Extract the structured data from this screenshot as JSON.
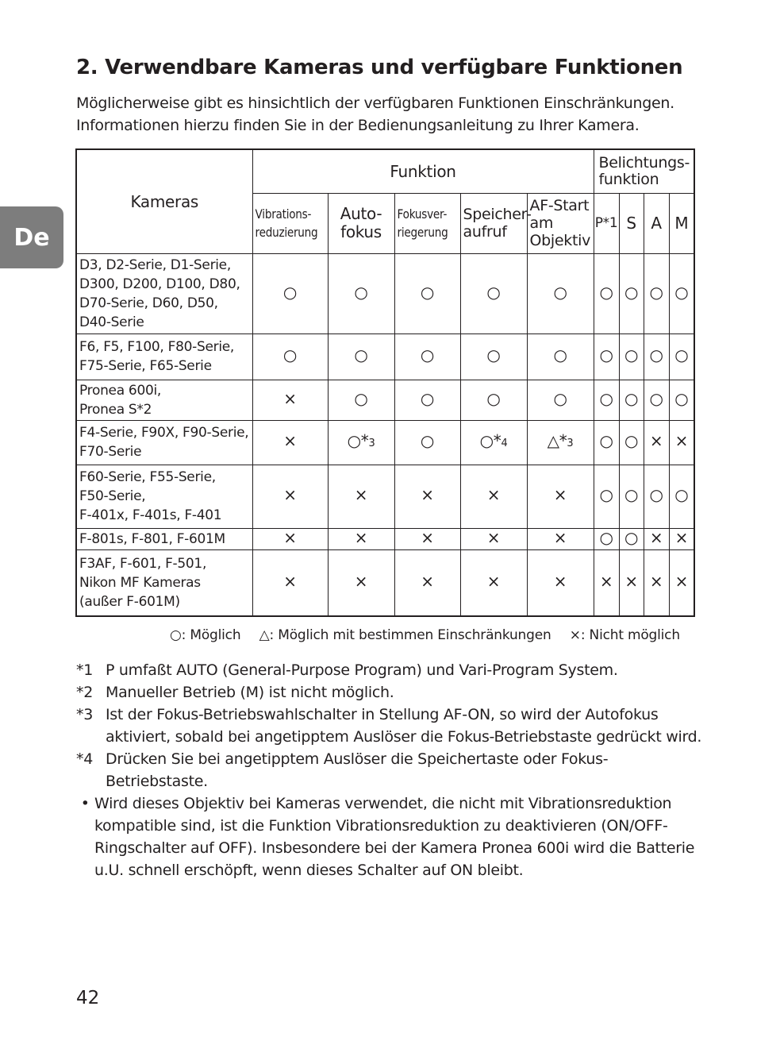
{
  "side_tab": "De",
  "title": "2. Verwendbare Kameras und verfügbare Funktionen",
  "intro": [
    "Möglicherweise gibt es hinsichtlich der verfügbaren Funktionen Einschränkungen.",
    "Informationen hierzu finden Sie in der Bedienungsanleitung zu Ihrer Kamera."
  ],
  "table": {
    "cameras_header": "Kameras",
    "funktion_header": "Funktion",
    "belichtung_header": [
      "Belichtungs-",
      "funktion"
    ],
    "sub_headers": [
      [
        "Vibrations-",
        "reduzierung"
      ],
      [
        "Auto-",
        "fokus"
      ],
      [
        "Fokusver-",
        "riegerung"
      ],
      [
        "Speicher-",
        "aufruf"
      ],
      [
        "AF-Start",
        "am",
        "Objektiv"
      ],
      [
        "P*1"
      ],
      [
        "S"
      ],
      [
        "A"
      ],
      [
        "M"
      ]
    ],
    "rows": [
      {
        "camera": [
          "D3, D2-Serie, D1-Serie,",
          "D300, D200, D100, D80,",
          "D70-Serie, D60, D50,",
          "D40-Serie"
        ],
        "cells": [
          "○",
          "○",
          "○",
          "○",
          "○",
          "○",
          "○",
          "○",
          "○"
        ]
      },
      {
        "camera": [
          "F6, F5, F100, F80-Serie,",
          "F75-Serie, F65-Serie"
        ],
        "cells": [
          "○",
          "○",
          "○",
          "○",
          "○",
          "○",
          "○",
          "○",
          "○"
        ]
      },
      {
        "camera": [
          "Pronea 600i,",
          "Pronea S*2"
        ],
        "cells": [
          "×",
          "○",
          "○",
          "○",
          "○",
          "○",
          "○",
          "○",
          "○"
        ]
      },
      {
        "camera": [
          "F4-Serie, F90X, F90-Serie,",
          "F70-Serie"
        ],
        "cells": [
          "×",
          "○*3",
          "○",
          "○*4",
          "△*3",
          "○",
          "○",
          "×",
          "×"
        ]
      },
      {
        "camera": [
          "F60-Serie, F55-Serie,",
          "F50-Serie,",
          "F-401x, F-401s, F-401"
        ],
        "cells": [
          "×",
          "×",
          "×",
          "×",
          "×",
          "○",
          "○",
          "○",
          "○"
        ]
      },
      {
        "camera": [
          "F-801s, F-801, F-601M"
        ],
        "cells": [
          "×",
          "×",
          "×",
          "×",
          "×",
          "○",
          "○",
          "×",
          "×"
        ]
      },
      {
        "camera": [
          "F3AF, F-601, F-501,",
          "Nikon MF Kameras",
          "(außer F-601M)"
        ],
        "cells": [
          "×",
          "×",
          "×",
          "×",
          "×",
          "×",
          "×",
          "×",
          "×"
        ]
      }
    ]
  },
  "legend": [
    "○: Möglich",
    "△: Möglich mit bestimmen Einschränkungen",
    "×: Nicht möglich"
  ],
  "notes": [
    {
      "key": "*1",
      "text": "P umfaßt AUTO (General-Purpose Program) und Vari-Program System."
    },
    {
      "key": "*2",
      "text": "Manueller Betrieb (M) ist nicht möglich."
    },
    {
      "key": "*3",
      "text": "Ist der Fokus-Betriebswahlschalter in Stellung AF-ON, so wird der Autofokus aktiviert, sobald bei angetipptem Auslöser die Fokus-Betriebstaste gedrückt wird."
    },
    {
      "key": "*4",
      "text": "Drücken Sie bei angetipptem Auslöser die Speichertaste oder Fokus-Betriebstaste."
    },
    {
      "key": " •",
      "text": "Wird dieses Objektiv bei Kameras verwendet, die nicht mit Vibrationsreduktion kompatible sind, ist die Funktion Vibrationsreduktion zu deaktivieren (ON/OFF-Ringschalter auf OFF). Insbesondere bei der Kamera Pronea 600i wird die Batterie u.U. schnell erschöpft, wenn dieses Schalter auf ON bleibt."
    }
  ],
  "page_number": "42"
}
